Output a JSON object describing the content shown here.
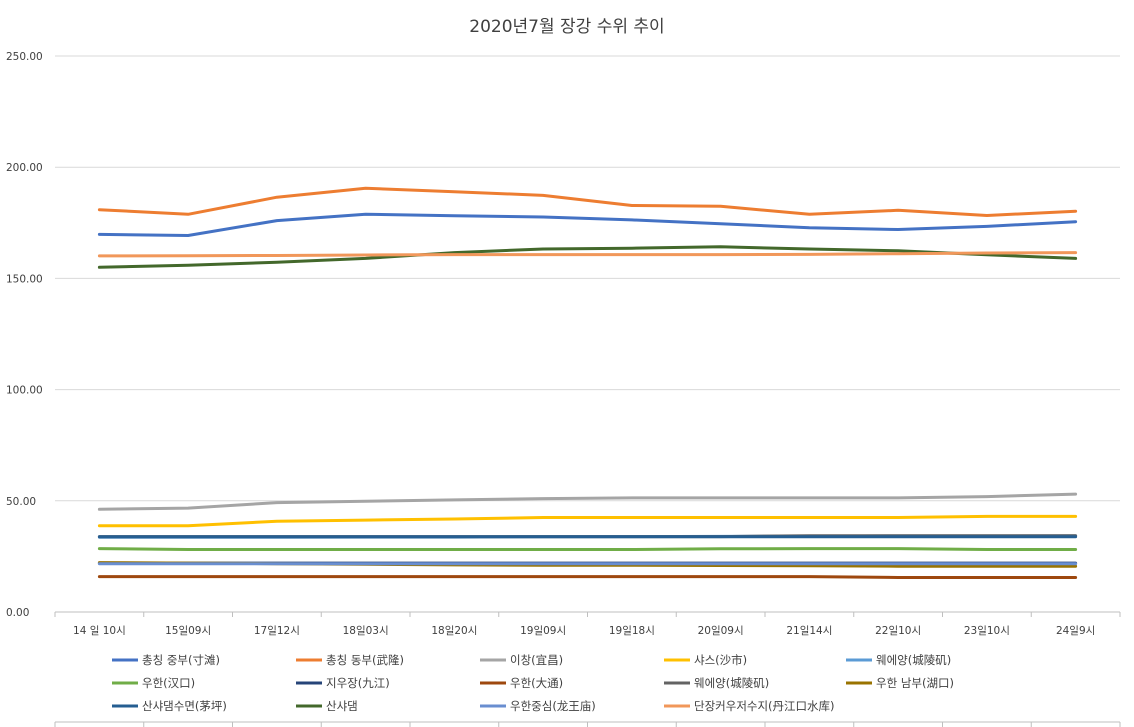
{
  "chart_data": {
    "type": "line",
    "title": "2020년7월 장강 수위 추이",
    "xlabel": "",
    "ylabel": "",
    "ylim": [
      0,
      250
    ],
    "yticks": [
      "0.00",
      "50.00",
      "100.00",
      "150.00",
      "200.00",
      "250.00"
    ],
    "ytick_values": [
      0,
      50,
      100,
      150,
      200,
      250
    ],
    "categories": [
      "14 일 10시",
      "15일09시",
      "17일12시",
      "18일03시",
      "18일20시",
      "19일09시",
      "19일18시",
      "20일09시",
      "21일14시",
      "22일10시",
      "23일10시",
      "24일9시"
    ],
    "grid": true,
    "legend_position": "bottom",
    "series": [
      {
        "name": "총칭 중부(寸滩)",
        "color": "#4472C4",
        "values": [
          169.8,
          169.3,
          176.0,
          178.8,
          178.2,
          177.6,
          176.3,
          174.6,
          172.8,
          172.0,
          173.4,
          175.5
        ]
      },
      {
        "name": "총칭 동부(武隆)",
        "color": "#ED7D31",
        "values": [
          180.9,
          178.8,
          186.5,
          190.5,
          189.0,
          187.3,
          182.8,
          182.4,
          178.8,
          180.6,
          178.3,
          180.2
        ]
      },
      {
        "name": "이창(宜昌)",
        "color": "#A5A5A5",
        "values": [
          46.2,
          46.7,
          49.2,
          49.8,
          50.4,
          51.0,
          51.3,
          51.3,
          51.3,
          51.3,
          51.9,
          53.0
        ]
      },
      {
        "name": "샤스(沙市)",
        "color": "#FFC000",
        "values": [
          38.8,
          38.8,
          40.8,
          41.3,
          41.8,
          42.5,
          42.5,
          42.5,
          42.5,
          42.5,
          43.0,
          43.0
        ]
      },
      {
        "name": "웨에양(城陵矶)",
        "color": "#5B9BD5",
        "values": [
          33.6,
          33.6,
          33.6,
          33.7,
          33.7,
          33.8,
          33.9,
          34.0,
          34.1,
          34.2,
          34.2,
          34.3
        ]
      },
      {
        "name": "우한(汉口)",
        "color": "#70AD47",
        "values": [
          28.5,
          28.1,
          28.1,
          28.1,
          28.1,
          28.1,
          28.1,
          28.4,
          28.5,
          28.5,
          28.1,
          28.1
        ]
      },
      {
        "name": "지우장(九江)",
        "color": "#264478",
        "values": [
          22.0,
          22.0,
          22.0,
          22.0,
          22.0,
          22.0,
          22.0,
          22.0,
          22.0,
          22.0,
          22.0,
          22.0
        ]
      },
      {
        "name": "우한(大通)",
        "color": "#9E480E",
        "values": [
          15.9,
          15.9,
          15.9,
          15.9,
          15.9,
          15.9,
          15.9,
          15.9,
          15.9,
          15.5,
          15.5,
          15.5
        ]
      },
      {
        "name": "웨에양(城陵矶)",
        "color": "#636363",
        "values": [
          33.9,
          33.9,
          33.9,
          33.9,
          33.9,
          33.9,
          33.9,
          33.9,
          34.3,
          34.3,
          34.3,
          34.3
        ]
      },
      {
        "name": "우한 남부(湖口)",
        "color": "#997300",
        "values": [
          22.2,
          22.0,
          21.7,
          21.5,
          21.2,
          21.0,
          21.0,
          20.9,
          20.8,
          20.6,
          20.6,
          20.6
        ]
      },
      {
        "name": "산샤댐수면(茅坪)",
        "color": "#255E91",
        "values": [
          33.8,
          33.8,
          33.8,
          33.8,
          33.8,
          33.8,
          33.8,
          33.8,
          33.8,
          33.8,
          33.8,
          33.8
        ]
      },
      {
        "name": "산샤댐",
        "color": "#43682B",
        "values": [
          155.0,
          155.9,
          157.3,
          159.0,
          161.6,
          163.2,
          163.6,
          164.2,
          163.2,
          162.4,
          160.6,
          159.0
        ]
      },
      {
        "name": "우한중심(龙王庙)",
        "color": "#698ED0",
        "values": [
          21.7,
          21.7,
          21.7,
          21.7,
          21.7,
          21.7,
          21.7,
          21.7,
          21.7,
          21.7,
          21.7,
          21.7
        ]
      },
      {
        "name": "단장커우저수지(丹江口水库)",
        "color": "#F1975A",
        "values": [
          160.1,
          160.2,
          160.3,
          160.5,
          160.7,
          160.7,
          160.7,
          160.7,
          160.8,
          161.1,
          161.4,
          161.6
        ]
      }
    ]
  }
}
